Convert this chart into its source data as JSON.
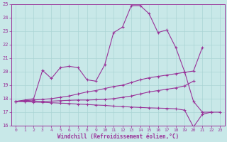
{
  "xlabel": "Windchill (Refroidissement éolien,°C)",
  "xlim": [
    -0.5,
    23.5
  ],
  "ylim": [
    16,
    25
  ],
  "xticks": [
    0,
    1,
    2,
    3,
    4,
    5,
    6,
    7,
    8,
    9,
    10,
    11,
    12,
    13,
    14,
    15,
    16,
    17,
    18,
    19,
    20,
    21,
    22,
    23
  ],
  "yticks": [
    16,
    17,
    18,
    19,
    20,
    21,
    22,
    23,
    24,
    25
  ],
  "bg_color": "#c8e8e8",
  "line_color": "#993399",
  "grid_color": "#aad4d4",
  "line1_x": [
    0,
    1,
    2,
    3,
    4,
    5,
    6,
    7,
    8,
    9,
    10,
    11,
    12,
    13,
    14,
    15,
    16,
    17,
    18,
    19,
    20,
    21,
    22
  ],
  "line1_y": [
    17.8,
    17.9,
    18.0,
    20.1,
    19.5,
    20.3,
    20.4,
    20.3,
    19.4,
    19.3,
    20.5,
    22.9,
    23.3,
    24.9,
    24.9,
    24.3,
    22.9,
    23.1,
    21.8,
    20.0,
    17.8,
    17.0,
    17.0
  ],
  "line2_x": [
    0,
    1,
    2,
    3,
    4,
    5,
    6,
    7,
    8,
    9,
    10,
    11,
    12,
    13,
    14,
    15,
    16,
    17,
    18,
    19,
    20,
    21
  ],
  "line2_y": [
    17.8,
    17.85,
    17.9,
    17.95,
    18.0,
    18.1,
    18.2,
    18.35,
    18.5,
    18.6,
    18.75,
    18.9,
    19.0,
    19.2,
    19.4,
    19.55,
    19.65,
    19.75,
    19.85,
    19.95,
    20.05,
    21.8
  ],
  "line3_x": [
    0,
    1,
    2,
    3,
    4,
    5,
    6,
    7,
    8,
    9,
    10,
    11,
    12,
    13,
    14,
    15,
    16,
    17,
    18,
    19,
    20
  ],
  "line3_y": [
    17.8,
    17.8,
    17.8,
    17.8,
    17.82,
    17.85,
    17.88,
    17.9,
    17.9,
    17.92,
    17.95,
    18.0,
    18.1,
    18.2,
    18.35,
    18.5,
    18.6,
    18.7,
    18.8,
    18.95,
    19.3
  ],
  "line4_x": [
    0,
    1,
    2,
    3,
    4,
    5,
    6,
    7,
    8,
    9,
    10,
    11,
    12,
    13,
    14,
    15,
    16,
    17,
    18,
    19,
    20,
    21,
    22,
    23
  ],
  "line4_y": [
    17.8,
    17.78,
    17.75,
    17.73,
    17.7,
    17.67,
    17.64,
    17.6,
    17.57,
    17.53,
    17.5,
    17.45,
    17.42,
    17.38,
    17.35,
    17.32,
    17.3,
    17.28,
    17.25,
    17.15,
    15.9,
    16.85,
    17.0,
    17.0
  ]
}
